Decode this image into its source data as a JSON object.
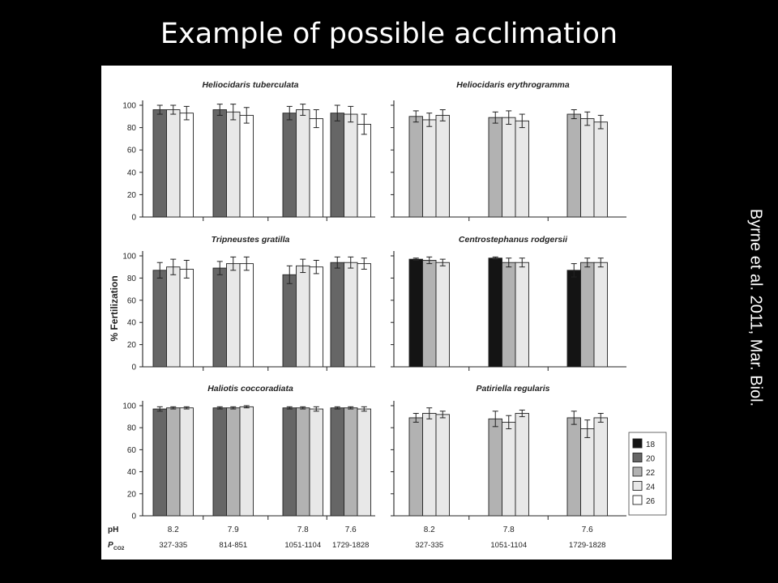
{
  "slide": {
    "title": "Example of possible acclimation",
    "citation": "Byrne et al. 2011, Mar. Biol."
  },
  "colors": {
    "18": "#141414",
    "20": "#666666",
    "22": "#b2b2b2",
    "24": "#e8e8e8",
    "26": "#ffffff"
  },
  "chart_data": [
    {
      "type": "bar",
      "title": "Heliocidaris tuberculata",
      "ylabel": "% Fertilization",
      "ylim": [
        0,
        100
      ],
      "yticks": [
        0,
        20,
        40,
        60,
        80,
        100
      ],
      "legend": [
        "20",
        "24",
        "26"
      ],
      "groups": [
        {
          "pH": "8.2",
          "pco2": "327-335",
          "values": [
            96,
            96,
            93
          ],
          "errors": [
            4,
            4,
            6
          ]
        },
        {
          "pH": "7.9",
          "pco2": "814-851",
          "values": [
            96,
            94,
            91
          ],
          "errors": [
            5,
            7,
            7
          ]
        },
        {
          "pH": "7.8",
          "pco2": "1051-1104",
          "values": [
            93,
            96,
            88
          ],
          "errors": [
            6,
            5,
            8
          ]
        },
        {
          "pH": "7.6",
          "pco2": "1729-1828",
          "values": [
            93,
            92,
            83
          ],
          "errors": [
            7,
            7,
            9
          ]
        }
      ]
    },
    {
      "type": "bar",
      "title": "Heliocidaris erythrogramma",
      "ylabel": "% Fertilization",
      "ylim": [
        0,
        100
      ],
      "yticks": [],
      "legend": [
        "22",
        "24",
        "24"
      ],
      "groups": [
        {
          "pH": "8.2",
          "pco2": "327-335",
          "values": [
            90,
            87,
            91
          ],
          "errors": [
            5,
            6,
            5
          ]
        },
        {
          "pH": "7.8",
          "pco2": "1051-1104",
          "values": [
            89,
            89,
            86
          ],
          "errors": [
            5,
            6,
            6
          ]
        },
        {
          "pH": "7.6",
          "pco2": "1729-1828",
          "values": [
            92,
            88,
            85
          ],
          "errors": [
            4,
            6,
            6
          ]
        }
      ]
    },
    {
      "type": "bar",
      "title": "Tripneustes gratilla",
      "ylabel": "% Fertilization",
      "ylim": [
        0,
        100
      ],
      "yticks": [
        0,
        20,
        40,
        60,
        80,
        100
      ],
      "legend": [
        "20",
        "24",
        "26"
      ],
      "groups": [
        {
          "pH": "8.2",
          "pco2": "327-335",
          "values": [
            87,
            90,
            88
          ],
          "errors": [
            7,
            7,
            8
          ]
        },
        {
          "pH": "7.9",
          "pco2": "814-851",
          "values": [
            89,
            93,
            93
          ],
          "errors": [
            6,
            6,
            6
          ]
        },
        {
          "pH": "7.8",
          "pco2": "1051-1104",
          "values": [
            83,
            91,
            90
          ],
          "errors": [
            8,
            6,
            6
          ]
        },
        {
          "pH": "7.6",
          "pco2": "1729-1828",
          "values": [
            94,
            94,
            93
          ],
          "errors": [
            5,
            5,
            5
          ]
        }
      ]
    },
    {
      "type": "bar",
      "title": "Centrostephanus rodgersii",
      "ylabel": "% Fertilization",
      "ylim": [
        0,
        100
      ],
      "yticks": [],
      "legend": [
        "18",
        "22",
        "24"
      ],
      "groups": [
        {
          "pH": "8.2",
          "pco2": "327-335",
          "values": [
            97,
            96,
            94
          ],
          "errors": [
            1,
            3,
            3
          ]
        },
        {
          "pH": "7.8",
          "pco2": "1051-1104",
          "values": [
            98,
            94,
            94
          ],
          "errors": [
            1,
            4,
            4
          ]
        },
        {
          "pH": "7.6",
          "pco2": "1729-1828",
          "values": [
            87,
            94,
            94
          ],
          "errors": [
            6,
            4,
            4
          ]
        }
      ]
    },
    {
      "type": "bar",
      "title": "Haliotis coccoradiata",
      "ylabel": "% Fertilization",
      "ylim": [
        0,
        100
      ],
      "yticks": [
        0,
        20,
        40,
        60,
        80,
        100
      ],
      "legend": [
        "20",
        "22",
        "24"
      ],
      "groups": [
        {
          "pH": "8.2",
          "pco2": "327-335",
          "values": [
            97,
            98,
            98
          ],
          "errors": [
            2,
            1,
            1
          ]
        },
        {
          "pH": "7.9",
          "pco2": "814-851",
          "values": [
            98,
            98,
            99
          ],
          "errors": [
            1,
            1,
            1
          ]
        },
        {
          "pH": "7.8",
          "pco2": "1051-1104",
          "values": [
            98,
            98,
            97
          ],
          "errors": [
            1,
            1,
            2
          ]
        },
        {
          "pH": "7.6",
          "pco2": "1729-1828",
          "values": [
            98,
            98,
            97
          ],
          "errors": [
            1,
            1,
            2
          ]
        }
      ]
    },
    {
      "type": "bar",
      "title": "Patiriella regularis",
      "ylabel": "% Fertilization",
      "ylim": [
        0,
        100
      ],
      "yticks": [],
      "legend": [
        "22",
        "24",
        "24"
      ],
      "groups": [
        {
          "pH": "8.2",
          "pco2": "327-335",
          "values": [
            89,
            93,
            92
          ],
          "errors": [
            4,
            5,
            3
          ]
        },
        {
          "pH": "7.8",
          "pco2": "1051-1104",
          "values": [
            88,
            85,
            93
          ],
          "errors": [
            7,
            6,
            3
          ]
        },
        {
          "pH": "7.6",
          "pco2": "1729-1828",
          "values": [
            89,
            79,
            89
          ],
          "errors": [
            6,
            8,
            4
          ]
        }
      ]
    }
  ],
  "axis_labels": {
    "ylabel": "% Fertilization",
    "ph_label": "pH",
    "pco2_label": "P",
    "pco2_sub": "CO2"
  },
  "legend": {
    "placement": "bottom-right",
    "entries": [
      "18",
      "20",
      "22",
      "24",
      "26"
    ]
  }
}
